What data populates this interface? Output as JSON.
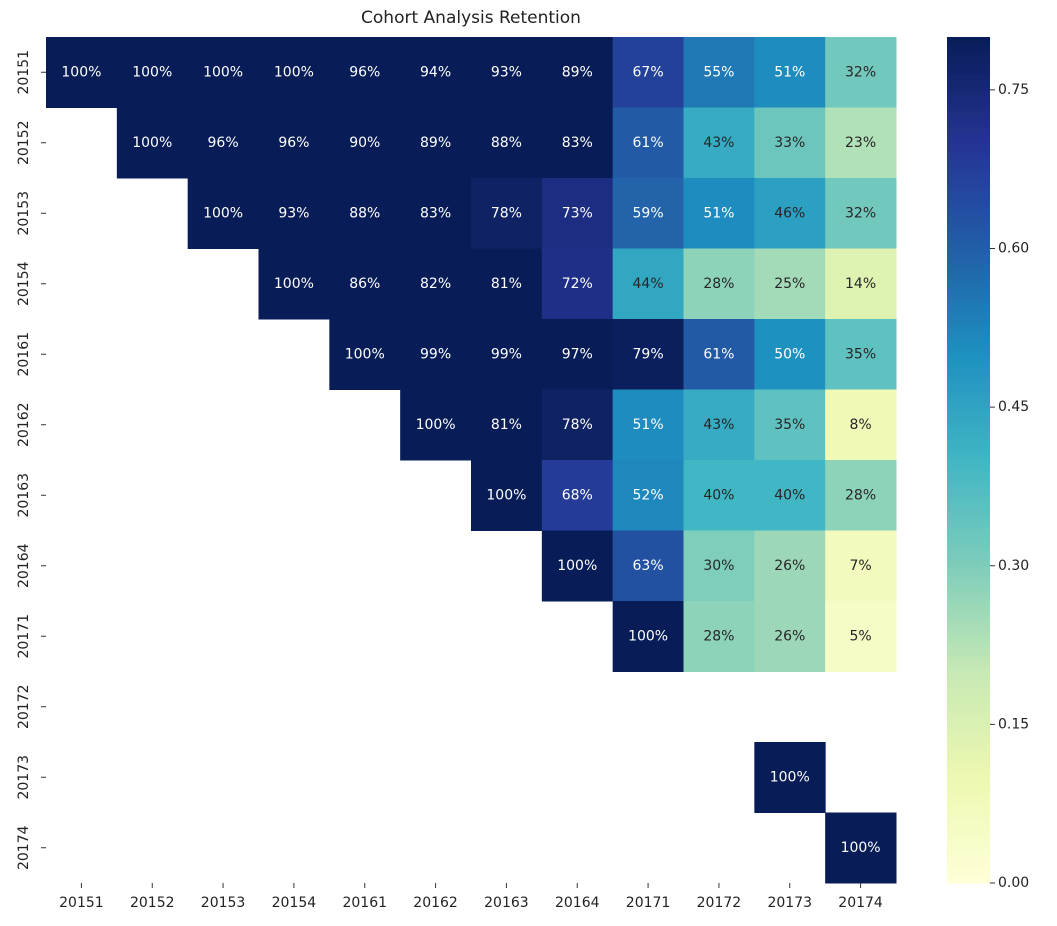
{
  "chart_data": {
    "type": "heatmap",
    "title": "Cohort Analysis Retention",
    "colormap": "YlGnBu",
    "x": [
      "20151",
      "20152",
      "20153",
      "20154",
      "20161",
      "20162",
      "20163",
      "20164",
      "20171",
      "20172",
      "20173",
      "20174"
    ],
    "y": [
      "20151",
      "20152",
      "20153",
      "20154",
      "20161",
      "20162",
      "20163",
      "20164",
      "20171",
      "20172",
      "20173",
      "20174"
    ],
    "values": [
      [
        1,
        1,
        1,
        1,
        0.96,
        0.94,
        0.93,
        0.89,
        0.67,
        0.55,
        0.51,
        0.32
      ],
      [
        null,
        1,
        0.96,
        0.96,
        0.9,
        0.89,
        0.88,
        0.83,
        0.61,
        0.43,
        0.33,
        0.23
      ],
      [
        null,
        null,
        1,
        0.93,
        0.88,
        0.83,
        0.78,
        0.73,
        0.59,
        0.51,
        0.46,
        0.32
      ],
      [
        null,
        null,
        null,
        1,
        0.86,
        0.82,
        0.81,
        0.72,
        0.44,
        0.28,
        0.25,
        0.14
      ],
      [
        null,
        null,
        null,
        null,
        1,
        0.99,
        0.99,
        0.97,
        0.79,
        0.61,
        0.5,
        0.35
      ],
      [
        null,
        null,
        null,
        null,
        null,
        1,
        0.81,
        0.78,
        0.51,
        0.43,
        0.35,
        0.08
      ],
      [
        null,
        null,
        null,
        null,
        null,
        null,
        1,
        0.68,
        0.52,
        0.4,
        0.4,
        0.28
      ],
      [
        null,
        null,
        null,
        null,
        null,
        null,
        null,
        1,
        0.63,
        0.3,
        0.26,
        0.07
      ],
      [
        null,
        null,
        null,
        null,
        null,
        null,
        null,
        null,
        1,
        0.28,
        0.26,
        0.05
      ],
      [
        null,
        null,
        null,
        null,
        null,
        null,
        null,
        null,
        null,
        null,
        null,
        null
      ],
      [
        null,
        null,
        null,
        null,
        null,
        null,
        null,
        null,
        null,
        null,
        1,
        null
      ],
      [
        null,
        null,
        null,
        null,
        null,
        null,
        null,
        null,
        null,
        null,
        null,
        1
      ]
    ],
    "value_labels": [
      [
        "100%",
        "100%",
        "100%",
        "100%",
        "96%",
        "94%",
        "93%",
        "89%",
        "67%",
        "55%",
        "51%",
        "32%"
      ],
      [
        null,
        "100%",
        "96%",
        "96%",
        "90%",
        "89%",
        "88%",
        "83%",
        "61%",
        "43%",
        "33%",
        "23%"
      ],
      [
        null,
        null,
        "100%",
        "93%",
        "88%",
        "83%",
        "78%",
        "73%",
        "59%",
        "51%",
        "46%",
        "32%"
      ],
      [
        null,
        null,
        null,
        "100%",
        "86%",
        "82%",
        "81%",
        "72%",
        "44%",
        "28%",
        "25%",
        "14%"
      ],
      [
        null,
        null,
        null,
        null,
        "100%",
        "99%",
        "99%",
        "97%",
        "79%",
        "61%",
        "50%",
        "35%"
      ],
      [
        null,
        null,
        null,
        null,
        null,
        "100%",
        "81%",
        "78%",
        "51%",
        "43%",
        "35%",
        "8%"
      ],
      [
        null,
        null,
        null,
        null,
        null,
        null,
        "100%",
        "68%",
        "52%",
        "40%",
        "40%",
        "28%"
      ],
      [
        null,
        null,
        null,
        null,
        null,
        null,
        null,
        "100%",
        "63%",
        "30%",
        "26%",
        "7%"
      ],
      [
        null,
        null,
        null,
        null,
        null,
        null,
        null,
        null,
        "100%",
        "28%",
        "26%",
        "5%"
      ],
      [
        null,
        null,
        null,
        null,
        null,
        null,
        null,
        null,
        null,
        null,
        null,
        null
      ],
      [
        null,
        null,
        null,
        null,
        null,
        null,
        null,
        null,
        null,
        null,
        "100%",
        null
      ],
      [
        null,
        null,
        null,
        null,
        null,
        null,
        null,
        null,
        null,
        null,
        null,
        "100%"
      ]
    ],
    "clim": [
      0,
      0.8
    ],
    "cticks": [
      {
        "value": 0,
        "label": "0.00"
      },
      {
        "value": 0.15,
        "label": "0.15"
      },
      {
        "value": 0.3,
        "label": "0.30"
      },
      {
        "value": 0.45,
        "label": "0.45"
      },
      {
        "value": 0.6,
        "label": "0.60"
      },
      {
        "value": 0.75,
        "label": "0.75"
      }
    ]
  }
}
